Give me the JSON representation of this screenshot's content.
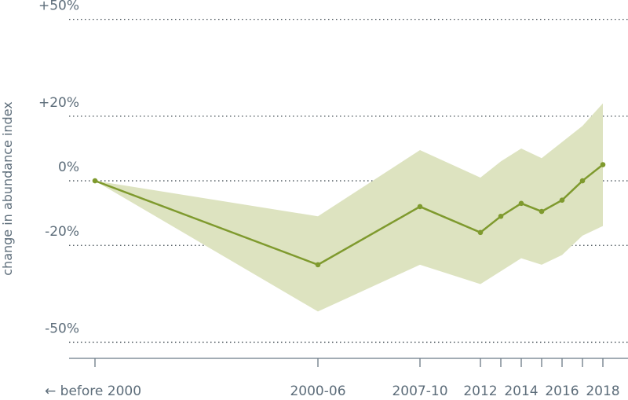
{
  "chart_data": {
    "type": "line",
    "y_label": "change in abundance index",
    "categories": [
      "←  before 2000",
      "2000-06",
      "2007-10",
      "2012",
      null,
      "2014",
      null,
      "2016",
      null,
      "2018"
    ],
    "series": [
      {
        "color": "#7f9a2e",
        "band_color": "#dde3c0",
        "values": [
          0,
          -26,
          -8,
          -16,
          -11,
          -7,
          -9.5,
          -6,
          0,
          5
        ],
        "upper": [
          0,
          -11,
          9.5,
          1,
          6,
          10,
          7,
          12,
          17,
          24
        ],
        "lower": [
          0,
          -40.5,
          -26,
          -32,
          -28,
          -24,
          -26,
          -23,
          -17,
          -14
        ]
      }
    ],
    "ylim": [
      -55,
      56
    ],
    "yticks": [
      {
        "value": 50,
        "label": "+50%"
      },
      {
        "value": 20,
        "label": "+20%"
      },
      {
        "value": 0,
        "label": "0%"
      },
      {
        "value": -20,
        "label": "-20%"
      },
      {
        "value": -50,
        "label": "-50%"
      }
    ],
    "grid": true
  }
}
